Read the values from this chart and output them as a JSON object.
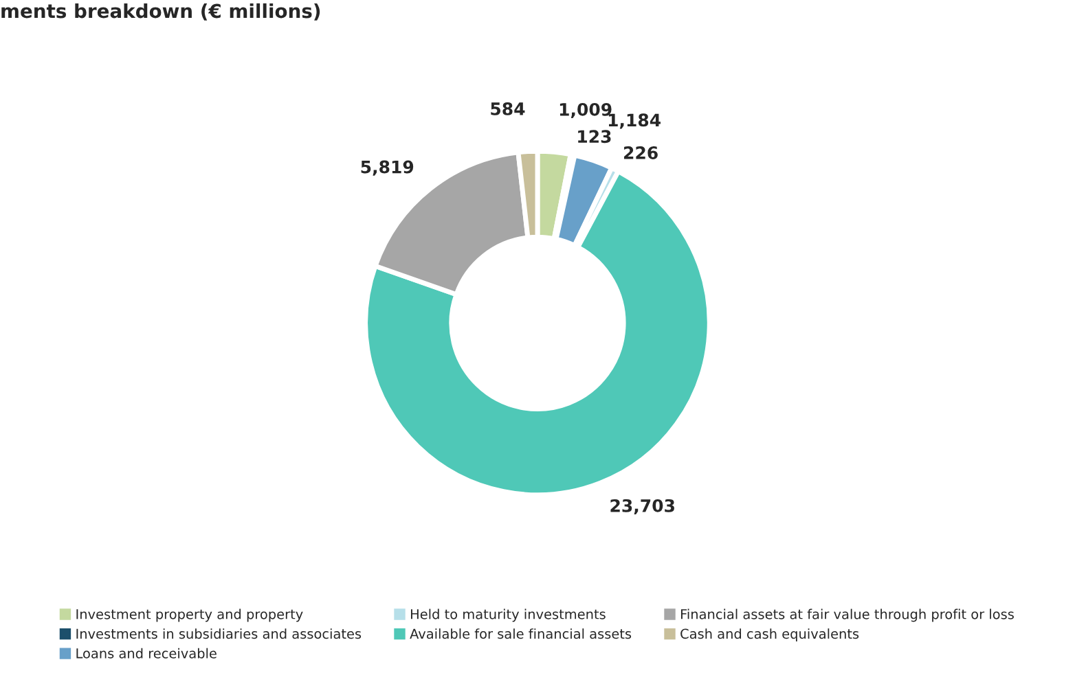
{
  "chart_data": {
    "type": "donut",
    "title": "ments breakdown (€ millions)",
    "categories": [
      "Investment property and property",
      "Investments in subsidiaries and associates",
      "Loans and receivable",
      "Held to maturity investments",
      "Available for sale financial assets",
      "Financial assets at fair value through profit or loss",
      "Cash and cash equivalents"
    ],
    "values": [
      1009,
      123,
      1184,
      226,
      23703,
      5819,
      584
    ],
    "value_labels": [
      "1,009",
      "123",
      "1,184",
      "226",
      "23,703",
      "5,819",
      "584"
    ],
    "colors": [
      "#c4d99f",
      "#1c4f6b",
      "#68a0c9",
      "#b6dfe9",
      "#4fc8b7",
      "#a6a6a6",
      "#c8bf9a"
    ],
    "legend": "bottom"
  }
}
